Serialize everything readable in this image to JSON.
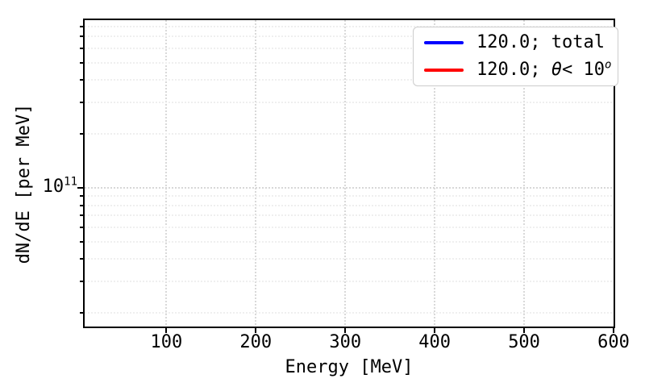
{
  "chart_data": {
    "type": "line",
    "title": "",
    "xlabel": "Energy [MeV]",
    "ylabel": "dN/dE [per MeV]",
    "x_ticks": [
      100,
      200,
      300,
      400,
      500,
      600
    ],
    "xlim": [
      8.6,
      600
    ],
    "yscale": "log",
    "ylim": [
      16800000000.0,
      865000000000.0
    ],
    "y_major_ticks": [
      100000000000.0
    ],
    "y_major_label": {
      "base": "10",
      "exp": "11"
    },
    "y_minor_ticks": [
      20000000000.0,
      30000000000.0,
      40000000000.0,
      50000000000.0,
      60000000000.0,
      70000000000.0,
      80000000000.0,
      90000000000.0,
      200000000000.0,
      300000000000.0,
      400000000000.0,
      500000000000.0,
      600000000000.0,
      700000000000.0,
      800000000000.0,
      900000000000.0
    ],
    "grid": {
      "which": "both",
      "style": "dashed",
      "minor_color": "#efefef",
      "major_color": "#d7d7d7"
    },
    "axes_facecolor": "#ffffff",
    "spine_color": "#000000",
    "legend": {
      "position": "upper right",
      "border_color": "#cccccc",
      "entries": [
        {
          "label": "120.0; total",
          "color": "#0000ff",
          "label_parts": {
            "prefix": "120.0; total",
            "theta": "",
            "mid": "",
            "sup": ""
          }
        },
        {
          "label": "120.0; θ< 10^o",
          "color": "#ff0000",
          "label_parts": {
            "prefix": "120.0; ",
            "theta": "θ",
            "mid": "< 10",
            "sup": "o"
          }
        }
      ]
    },
    "series": [
      {
        "name": "120.0; total",
        "color": "#0000ff",
        "x": [],
        "y": []
      },
      {
        "name": "120.0; θ< 10^o",
        "color": "#ff0000",
        "x": [],
        "y": []
      }
    ]
  }
}
